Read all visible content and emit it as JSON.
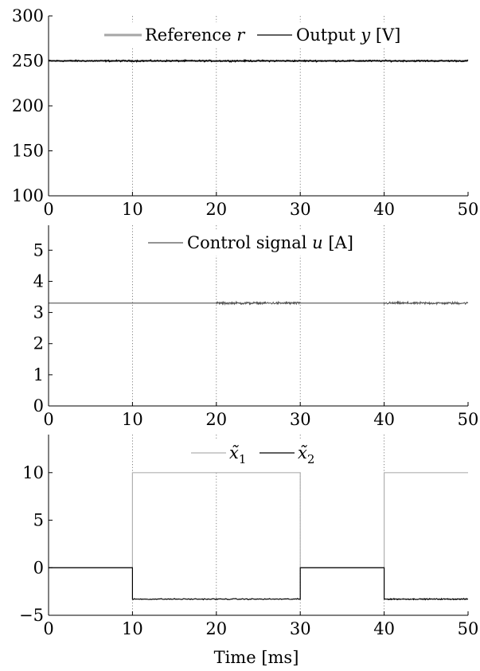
{
  "chart_data": [
    {
      "type": "line",
      "panel": "top",
      "xlim": [
        0,
        50
      ],
      "ylim": [
        100,
        300
      ],
      "xticks": [
        "0",
        "10",
        "20",
        "30",
        "40",
        "50"
      ],
      "yticks": [
        "100",
        "150",
        "200",
        "250",
        "300"
      ],
      "grid": "vertical dotted at x=10,20,30,40",
      "legend_position": "top-center",
      "legend": {
        "ref_prefix": "Reference ",
        "ref_var": "r",
        "out_prefix": "Output ",
        "out_var": "y",
        "out_suffix": " [V]"
      },
      "series": [
        {
          "name": "Reference r",
          "color": "#a6a6a6",
          "x": [
            0,
            50
          ],
          "y": [
            250,
            250
          ]
        },
        {
          "name": "Output y [V]",
          "color": "#000000",
          "x": [
            0,
            50
          ],
          "y": [
            250,
            250
          ],
          "noise": 1.2
        }
      ]
    },
    {
      "type": "line",
      "panel": "middle",
      "xlim": [
        0,
        50
      ],
      "ylim": [
        0,
        5.8
      ],
      "xticks": [
        "0",
        "10",
        "20",
        "30",
        "40",
        "50"
      ],
      "yticks": [
        "0",
        "1",
        "2",
        "3",
        "4",
        "5"
      ],
      "grid": "vertical dotted at x=10,20,30,40",
      "legend_position": "top-center",
      "legend": {
        "prefix": "Control signal ",
        "var": "u",
        "suffix": " [A]"
      },
      "series": [
        {
          "name": "Control signal u [A]",
          "color": "#555555",
          "segments": [
            {
              "x": [
                0,
                20
              ],
              "y": 3.3,
              "noise": 0
            },
            {
              "x": [
                20,
                30
              ],
              "y": 3.3,
              "noise": 0.05
            },
            {
              "x": [
                30,
                40
              ],
              "y": 3.3,
              "noise": 0
            },
            {
              "x": [
                40,
                50
              ],
              "y": 3.3,
              "noise": 0.05
            }
          ]
        }
      ]
    },
    {
      "type": "line",
      "panel": "bottom",
      "xlim": [
        0,
        50
      ],
      "ylim": [
        -5,
        14
      ],
      "xticks": [
        "0",
        "10",
        "20",
        "30",
        "40",
        "50"
      ],
      "yticks": [
        "−5",
        "0",
        "5",
        "10"
      ],
      "ytick_values": [
        -5,
        0,
        5,
        10
      ],
      "grid": "vertical dotted at x=10,20,30,40",
      "legend_position": "top-center",
      "legend": {
        "x1_var": "x̃",
        "x1_sub": "1",
        "x2_var": "x̃",
        "x2_sub": "2"
      },
      "xlabel": "Time [ms]",
      "series": [
        {
          "name": "x̃1",
          "color": "#b0b0b0",
          "x": [
            0,
            10,
            10,
            30,
            30,
            40,
            40,
            50
          ],
          "y": [
            0,
            0,
            10,
            10,
            0,
            0,
            10,
            10
          ]
        },
        {
          "name": "x̃2",
          "color": "#000000",
          "x": [
            0,
            10,
            10,
            30,
            30,
            40,
            40,
            50
          ],
          "y": [
            0,
            0,
            -3.3,
            -3.3,
            0,
            0,
            -3.3,
            -3.3
          ],
          "noisy_level": -3.3,
          "noise": 0.08
        }
      ]
    }
  ]
}
